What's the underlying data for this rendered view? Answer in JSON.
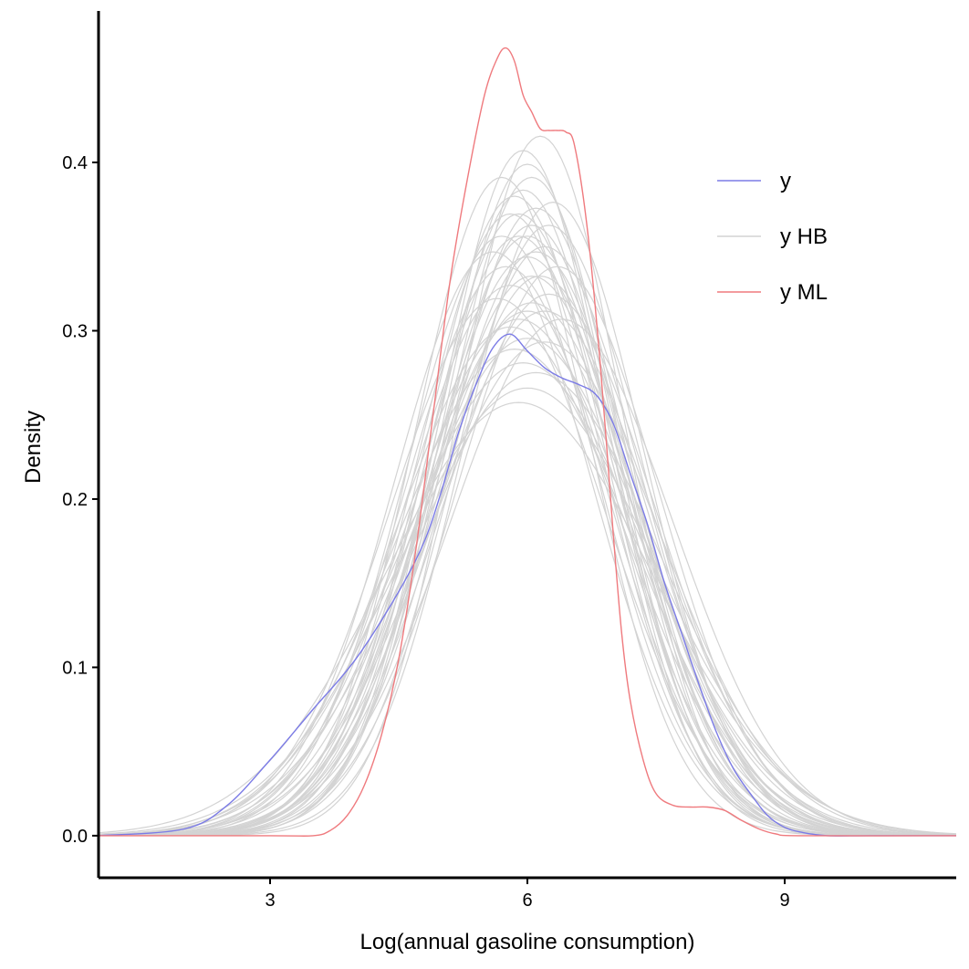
{
  "chart_data": {
    "type": "line",
    "title": "",
    "xlabel": "Log(annual gasoline consumption)",
    "ylabel": "Density",
    "xlim": [
      1,
      11
    ],
    "ylim": [
      -0.025,
      0.49
    ],
    "xticks": [
      3,
      6,
      9
    ],
    "yticks": [
      0.0,
      0.1,
      0.2,
      0.3,
      0.4
    ],
    "xtick_labels": [
      "3",
      "6",
      "9"
    ],
    "ytick_labels": [
      "0.0",
      "0.1",
      "0.2",
      "0.3",
      "0.4"
    ],
    "grid": false,
    "legend": {
      "position": "top-right",
      "entries": [
        "y",
        "y HB",
        "y ML"
      ]
    },
    "colors": {
      "y": "#7b7be6",
      "y HB": "#d3d3d3",
      "y ML": "#ef7a7e"
    },
    "series": [
      {
        "name": "y",
        "x": [
          1.0,
          2.0,
          2.5,
          3.0,
          3.5,
          4.0,
          4.5,
          4.8,
          5.0,
          5.2,
          5.4,
          5.6,
          5.8,
          6.0,
          6.2,
          6.4,
          6.6,
          6.8,
          7.0,
          7.2,
          7.4,
          7.6,
          7.8,
          8.0,
          8.2,
          8.4,
          8.6,
          8.8,
          9.0,
          9.2,
          9.5,
          10.0,
          11.0
        ],
        "y": [
          0.0,
          0.004,
          0.018,
          0.045,
          0.075,
          0.105,
          0.145,
          0.175,
          0.205,
          0.24,
          0.268,
          0.29,
          0.298,
          0.288,
          0.278,
          0.272,
          0.268,
          0.262,
          0.245,
          0.215,
          0.185,
          0.15,
          0.12,
          0.09,
          0.062,
          0.04,
          0.025,
          0.012,
          0.005,
          0.002,
          0.0,
          0.0,
          0.0
        ]
      },
      {
        "name": "y HB",
        "draws": [
          {
            "m": 5.9,
            "s": 1.08
          },
          {
            "m": 6.0,
            "s": 1.12
          },
          {
            "m": 6.05,
            "s": 1.02
          },
          {
            "m": 5.8,
            "s": 1.22
          },
          {
            "m": 6.1,
            "s": 1.15
          },
          {
            "m": 5.95,
            "s": 0.98
          },
          {
            "m": 6.2,
            "s": 1.28
          },
          {
            "m": 5.7,
            "s": 1.12
          },
          {
            "m": 6.0,
            "s": 1.35
          },
          {
            "m": 6.3,
            "s": 1.06
          },
          {
            "m": 5.85,
            "s": 1.05
          },
          {
            "m": 6.15,
            "s": 1.2
          },
          {
            "m": 5.9,
            "s": 1.3
          },
          {
            "m": 6.05,
            "s": 1.1
          },
          {
            "m": 5.75,
            "s": 1.18
          },
          {
            "m": 6.25,
            "s": 1.24
          },
          {
            "m": 6.0,
            "s": 1.0
          },
          {
            "m": 5.95,
            "s": 1.42
          },
          {
            "m": 6.1,
            "s": 1.07
          },
          {
            "m": 5.8,
            "s": 1.32
          },
          {
            "m": 6.2,
            "s": 1.14
          },
          {
            "m": 5.65,
            "s": 1.25
          },
          {
            "m": 6.35,
            "s": 1.18
          },
          {
            "m": 6.0,
            "s": 1.5
          },
          {
            "m": 5.9,
            "s": 1.12
          },
          {
            "m": 6.15,
            "s": 0.96
          },
          {
            "m": 5.85,
            "s": 1.38
          },
          {
            "m": 6.05,
            "s": 1.26
          },
          {
            "m": 5.6,
            "s": 1.15
          },
          {
            "m": 6.4,
            "s": 1.3
          },
          {
            "m": 6.0,
            "s": 1.16
          },
          {
            "m": 5.95,
            "s": 1.04
          },
          {
            "m": 6.1,
            "s": 1.45
          },
          {
            "m": 5.8,
            "s": 1.08
          },
          {
            "m": 6.2,
            "s": 1.36
          },
          {
            "m": 5.7,
            "s": 1.02
          },
          {
            "m": 6.05,
            "s": 1.2
          },
          {
            "m": 5.9,
            "s": 1.55
          },
          {
            "m": 6.25,
            "s": 1.1
          },
          {
            "m": 6.0,
            "s": 1.28
          }
        ]
      },
      {
        "name": "y ML",
        "x": [
          1.0,
          3.0,
          3.5,
          3.7,
          3.9,
          4.1,
          4.3,
          4.5,
          4.7,
          4.9,
          5.1,
          5.3,
          5.5,
          5.65,
          5.75,
          5.85,
          5.95,
          6.05,
          6.15,
          6.25,
          6.35,
          6.45,
          6.55,
          6.7,
          6.85,
          7.0,
          7.1,
          7.2,
          7.35,
          7.5,
          7.7,
          7.9,
          8.1,
          8.3,
          8.5,
          8.7,
          8.9,
          9.2,
          11.0
        ],
        "y": [
          0.0,
          0.0,
          0.0,
          0.003,
          0.012,
          0.03,
          0.06,
          0.105,
          0.17,
          0.25,
          0.33,
          0.39,
          0.44,
          0.462,
          0.468,
          0.46,
          0.44,
          0.43,
          0.42,
          0.419,
          0.419,
          0.418,
          0.41,
          0.36,
          0.28,
          0.18,
          0.12,
          0.08,
          0.045,
          0.025,
          0.018,
          0.017,
          0.017,
          0.015,
          0.009,
          0.004,
          0.001,
          0.0,
          0.0
        ]
      }
    ]
  }
}
